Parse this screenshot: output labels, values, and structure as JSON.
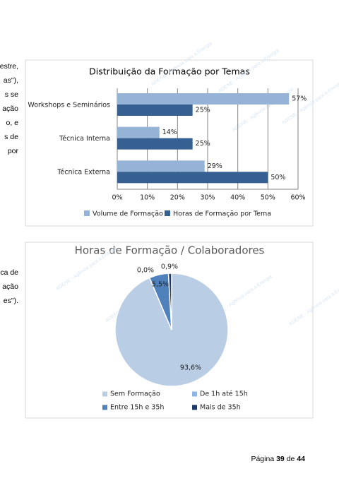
{
  "text_fragments_top": [
    "estre,",
    "as\"),",
    "s se",
    "ação",
    "o, e",
    "s de",
    "por"
  ],
  "text_fragments_bottom": [
    "ca de",
    "ação",
    "es\")."
  ],
  "watermark": "ADENE - Agência para a Energia",
  "chart_data": [
    {
      "type": "hbar",
      "title": "Distribuição da Formação por Temas",
      "categories": [
        "Workshops e Seminários",
        "Técnica Interna",
        "Técnica Externa"
      ],
      "series": [
        {
          "name": "Volume de Formação",
          "color": "#95b3d7",
          "values": [
            57,
            14,
            29
          ],
          "value_labels": [
            "57%",
            "14%",
            "29%"
          ]
        },
        {
          "name": "Horas de Formação por Tema",
          "color": "#366092",
          "values": [
            25,
            25,
            50
          ],
          "value_labels": [
            "25%",
            "25%",
            "50%"
          ]
        }
      ],
      "xlim": [
        0,
        60
      ],
      "xticks": [
        {
          "value": 0,
          "label": "0%"
        },
        {
          "value": 10,
          "label": "10%"
        },
        {
          "value": 20,
          "label": "20%"
        },
        {
          "value": 30,
          "label": "30%"
        },
        {
          "value": 40,
          "label": "40%"
        },
        {
          "value": 50,
          "label": "50%"
        },
        {
          "value": 60,
          "label": "60%"
        }
      ],
      "grid": true,
      "legend": "bottom"
    },
    {
      "type": "pie",
      "title": "Horas de Formação / Colaboradores",
      "categories": [
        "Sem Formação",
        "De 1h até 15h",
        "Entre 15h e 35h",
        "Mais de 35h"
      ],
      "values": [
        93.6,
        0,
        5.5,
        0.9
      ],
      "value_labels": [
        "93,6%",
        "0,0%",
        "5,5%",
        "0,9%"
      ],
      "colors": [
        "#b9cde5",
        "#8eb4e3",
        "#4f81bd",
        "#1f3864"
      ],
      "legend": "bottom"
    }
  ],
  "footer": {
    "prefix": "Página",
    "page": "39",
    "of": "de",
    "total": "44"
  }
}
